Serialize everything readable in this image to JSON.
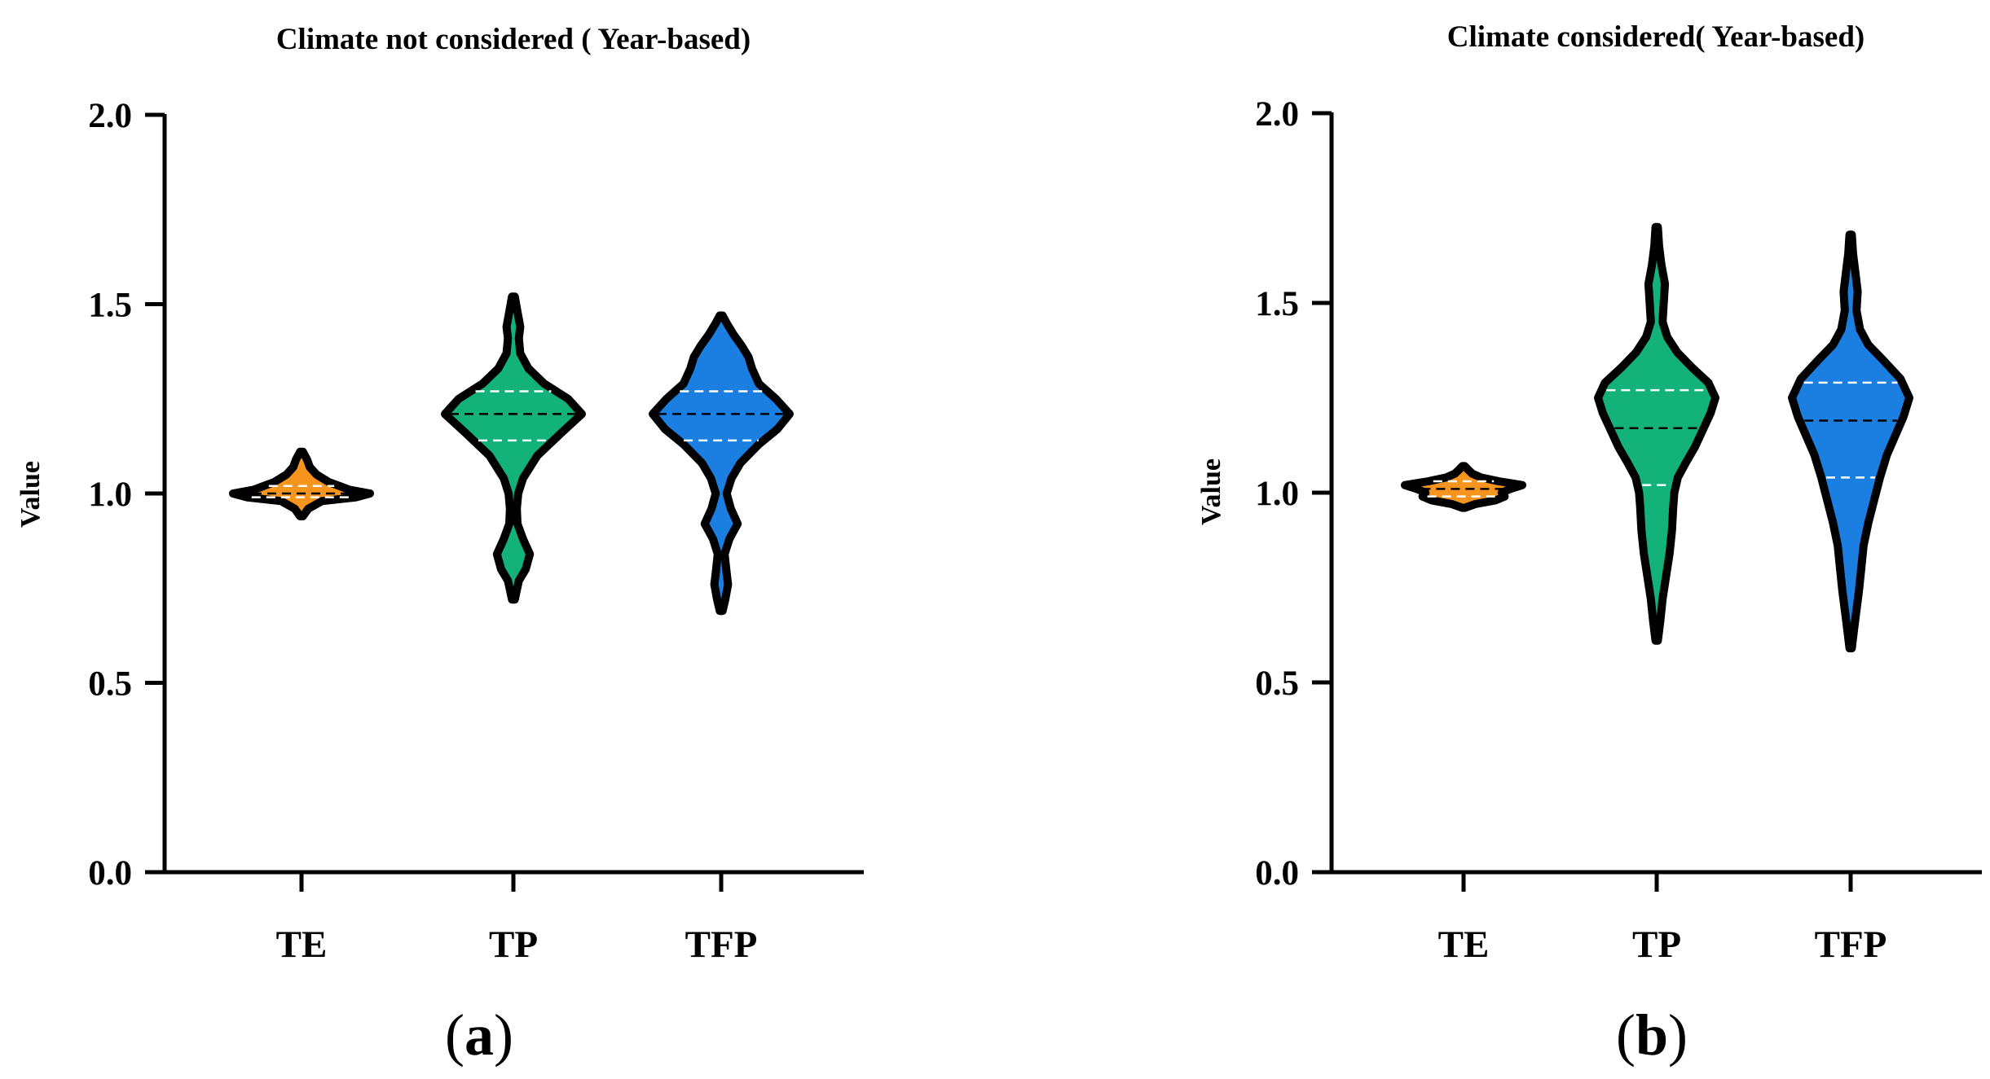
{
  "chart_data": [
    {
      "type": "violin",
      "panel_label": "a",
      "title": "Climate not considered ( Year-based)",
      "xlabel": "",
      "ylabel": "Value",
      "ylim": [
        0,
        2.0
      ],
      "yticks": [
        "0.0",
        "0.5",
        "1.0",
        "1.5",
        "2.0"
      ],
      "categories": [
        "TE",
        "TP",
        "TFP"
      ],
      "colors": [
        "#f7941d",
        "#13b27a",
        "#1a7fe0"
      ],
      "series": [
        {
          "name": "TE",
          "min": 0.94,
          "max": 1.11,
          "q1": 0.99,
          "median": 1.0,
          "q3": 1.02,
          "profile": [
            [
              0.94,
              0.02
            ],
            [
              0.96,
              0.1
            ],
            [
              0.98,
              0.3
            ],
            [
              0.99,
              0.8
            ],
            [
              1.0,
              1.0
            ],
            [
              1.01,
              0.7
            ],
            [
              1.02,
              0.55
            ],
            [
              1.03,
              0.4
            ],
            [
              1.05,
              0.22
            ],
            [
              1.07,
              0.12
            ],
            [
              1.09,
              0.08
            ],
            [
              1.11,
              0.02
            ]
          ]
        },
        {
          "name": "TP",
          "min": 0.72,
          "max": 1.52,
          "q1": 1.14,
          "median": 1.21,
          "q3": 1.27,
          "profile": [
            [
              0.72,
              0.02
            ],
            [
              0.77,
              0.08
            ],
            [
              0.8,
              0.18
            ],
            [
              0.84,
              0.24
            ],
            [
              0.88,
              0.14
            ],
            [
              0.92,
              0.06
            ],
            [
              0.96,
              0.05
            ],
            [
              1.0,
              0.07
            ],
            [
              1.04,
              0.14
            ],
            [
              1.1,
              0.35
            ],
            [
              1.16,
              0.7
            ],
            [
              1.21,
              1.0
            ],
            [
              1.25,
              0.8
            ],
            [
              1.29,
              0.45
            ],
            [
              1.33,
              0.22
            ],
            [
              1.37,
              0.1
            ],
            [
              1.41,
              0.08
            ],
            [
              1.44,
              0.1
            ],
            [
              1.48,
              0.06
            ],
            [
              1.52,
              0.02
            ]
          ]
        },
        {
          "name": "TFP",
          "min": 0.69,
          "max": 1.47,
          "q1": 1.14,
          "median": 1.21,
          "q3": 1.27,
          "profile": [
            [
              0.69,
              0.02
            ],
            [
              0.72,
              0.06
            ],
            [
              0.76,
              0.1
            ],
            [
              0.79,
              0.08
            ],
            [
              0.84,
              0.05
            ],
            [
              0.88,
              0.12
            ],
            [
              0.92,
              0.24
            ],
            [
              0.96,
              0.14
            ],
            [
              1.0,
              0.08
            ],
            [
              1.04,
              0.15
            ],
            [
              1.08,
              0.28
            ],
            [
              1.13,
              0.55
            ],
            [
              1.17,
              0.82
            ],
            [
              1.21,
              1.0
            ],
            [
              1.25,
              0.8
            ],
            [
              1.29,
              0.55
            ],
            [
              1.33,
              0.45
            ],
            [
              1.36,
              0.4
            ],
            [
              1.39,
              0.3
            ],
            [
              1.42,
              0.18
            ],
            [
              1.45,
              0.08
            ],
            [
              1.47,
              0.02
            ]
          ]
        }
      ]
    },
    {
      "type": "violin",
      "panel_label": "b",
      "title": "Climate considered( Year-based)",
      "xlabel": "",
      "ylabel": "Value",
      "ylim": [
        0,
        2.0
      ],
      "yticks": [
        "0.0",
        "0.5",
        "1.0",
        "1.5",
        "2.0"
      ],
      "categories": [
        "TE",
        "TP",
        "TFP"
      ],
      "colors": [
        "#f7941d",
        "#13b27a",
        "#1a7fe0"
      ],
      "series": [
        {
          "name": "TE",
          "min": 0.96,
          "max": 1.07,
          "q1": 0.99,
          "median": 1.01,
          "q3": 1.03,
          "profile": [
            [
              0.96,
              0.02
            ],
            [
              0.97,
              0.2
            ],
            [
              0.98,
              0.55
            ],
            [
              0.99,
              0.7
            ],
            [
              1.0,
              0.65
            ],
            [
              1.01,
              0.8
            ],
            [
              1.02,
              1.0
            ],
            [
              1.03,
              0.6
            ],
            [
              1.04,
              0.3
            ],
            [
              1.05,
              0.15
            ],
            [
              1.06,
              0.08
            ],
            [
              1.07,
              0.02
            ]
          ]
        },
        {
          "name": "TP",
          "min": 0.61,
          "max": 1.7,
          "q1": 1.02,
          "median": 1.17,
          "q3": 1.27,
          "profile": [
            [
              0.61,
              0.02
            ],
            [
              0.66,
              0.06
            ],
            [
              0.72,
              0.1
            ],
            [
              0.78,
              0.16
            ],
            [
              0.84,
              0.22
            ],
            [
              0.9,
              0.26
            ],
            [
              0.96,
              0.28
            ],
            [
              1.0,
              0.3
            ],
            [
              1.04,
              0.36
            ],
            [
              1.08,
              0.5
            ],
            [
              1.12,
              0.65
            ],
            [
              1.17,
              0.8
            ],
            [
              1.21,
              0.92
            ],
            [
              1.25,
              1.0
            ],
            [
              1.29,
              0.88
            ],
            [
              1.33,
              0.6
            ],
            [
              1.37,
              0.35
            ],
            [
              1.41,
              0.18
            ],
            [
              1.45,
              0.1
            ],
            [
              1.5,
              0.12
            ],
            [
              1.55,
              0.14
            ],
            [
              1.6,
              0.08
            ],
            [
              1.65,
              0.04
            ],
            [
              1.7,
              0.02
            ]
          ]
        },
        {
          "name": "TFP",
          "min": 0.59,
          "max": 1.68,
          "q1": 1.04,
          "median": 1.19,
          "q3": 1.29,
          "profile": [
            [
              0.59,
              0.02
            ],
            [
              0.63,
              0.05
            ],
            [
              0.68,
              0.09
            ],
            [
              0.74,
              0.14
            ],
            [
              0.8,
              0.18
            ],
            [
              0.86,
              0.22
            ],
            [
              0.92,
              0.3
            ],
            [
              0.98,
              0.4
            ],
            [
              1.04,
              0.5
            ],
            [
              1.1,
              0.62
            ],
            [
              1.15,
              0.76
            ],
            [
              1.2,
              0.9
            ],
            [
              1.25,
              1.0
            ],
            [
              1.3,
              0.85
            ],
            [
              1.35,
              0.55
            ],
            [
              1.39,
              0.3
            ],
            [
              1.43,
              0.16
            ],
            [
              1.48,
              0.1
            ],
            [
              1.53,
              0.12
            ],
            [
              1.58,
              0.08
            ],
            [
              1.63,
              0.04
            ],
            [
              1.68,
              0.02
            ]
          ]
        }
      ]
    }
  ]
}
